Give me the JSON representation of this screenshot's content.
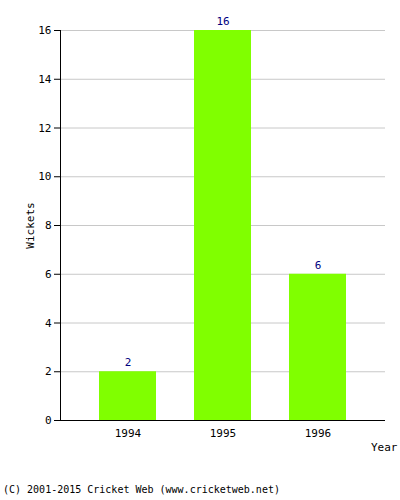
{
  "chart_data": {
    "type": "bar",
    "categories": [
      "1994",
      "1995",
      "1996"
    ],
    "values": [
      2,
      16,
      6
    ],
    "color": "#80ff00",
    "xlabel": "Year",
    "ylabel": "Wickets",
    "ylim": [
      0,
      16
    ],
    "yticks": [
      0,
      2,
      4,
      6,
      8,
      10,
      12,
      14,
      16
    ],
    "grid": true,
    "data_labels": true,
    "caption": "(C) 2001-2015 Cricket Web (www.cricketweb.net)"
  }
}
